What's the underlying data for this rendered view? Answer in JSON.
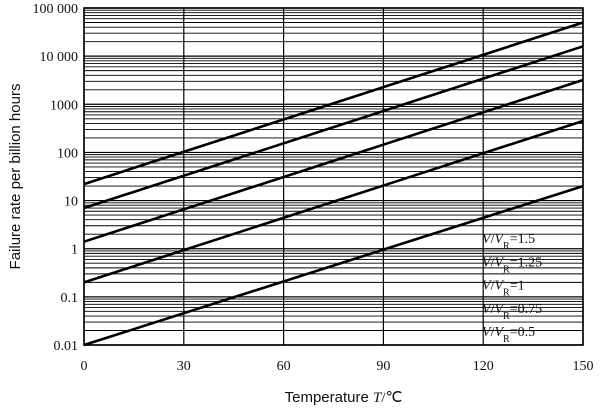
{
  "chart_data": {
    "type": "line",
    "xlabel": "Temperature",
    "xlabel_var": "T",
    "xlabel_unit": "/℃",
    "ylabel": "Failure rate per billion hours",
    "xlim": [
      0,
      150
    ],
    "ylim": [
      0.01,
      100000
    ],
    "y_scale": "log",
    "grid": true,
    "x_ticks": [
      0,
      30,
      60,
      90,
      120,
      150
    ],
    "x_tick_labels": [
      "0",
      "30",
      "60",
      "90",
      "120",
      "150"
    ],
    "y_ticks": [
      0.01,
      0.1,
      1,
      10,
      100,
      1000,
      10000,
      100000
    ],
    "y_tick_labels": [
      "0.01",
      "0.1",
      "1",
      "10",
      "100",
      "1000",
      "10 000",
      "100 000"
    ],
    "label_position": "bottom-right",
    "series": [
      {
        "name": "1.5",
        "ratio_label": "V/VR=1.5",
        "x": [
          0,
          150
        ],
        "y": [
          22,
          50000
        ]
      },
      {
        "name": "1.25",
        "ratio_label": "V/VR=1.25",
        "x": [
          0,
          150
        ],
        "y": [
          7,
          16000
        ]
      },
      {
        "name": "1",
        "ratio_label": "V/VR=1",
        "x": [
          0,
          150
        ],
        "y": [
          1.4,
          3200
        ]
      },
      {
        "name": "0.75",
        "ratio_label": "V/VR=0.75",
        "x": [
          0,
          150
        ],
        "y": [
          0.2,
          450
        ]
      },
      {
        "name": "0.5",
        "ratio_label": "V/VR=0.5",
        "x": [
          0,
          150
        ],
        "y": [
          0.01,
          20
        ]
      }
    ]
  }
}
